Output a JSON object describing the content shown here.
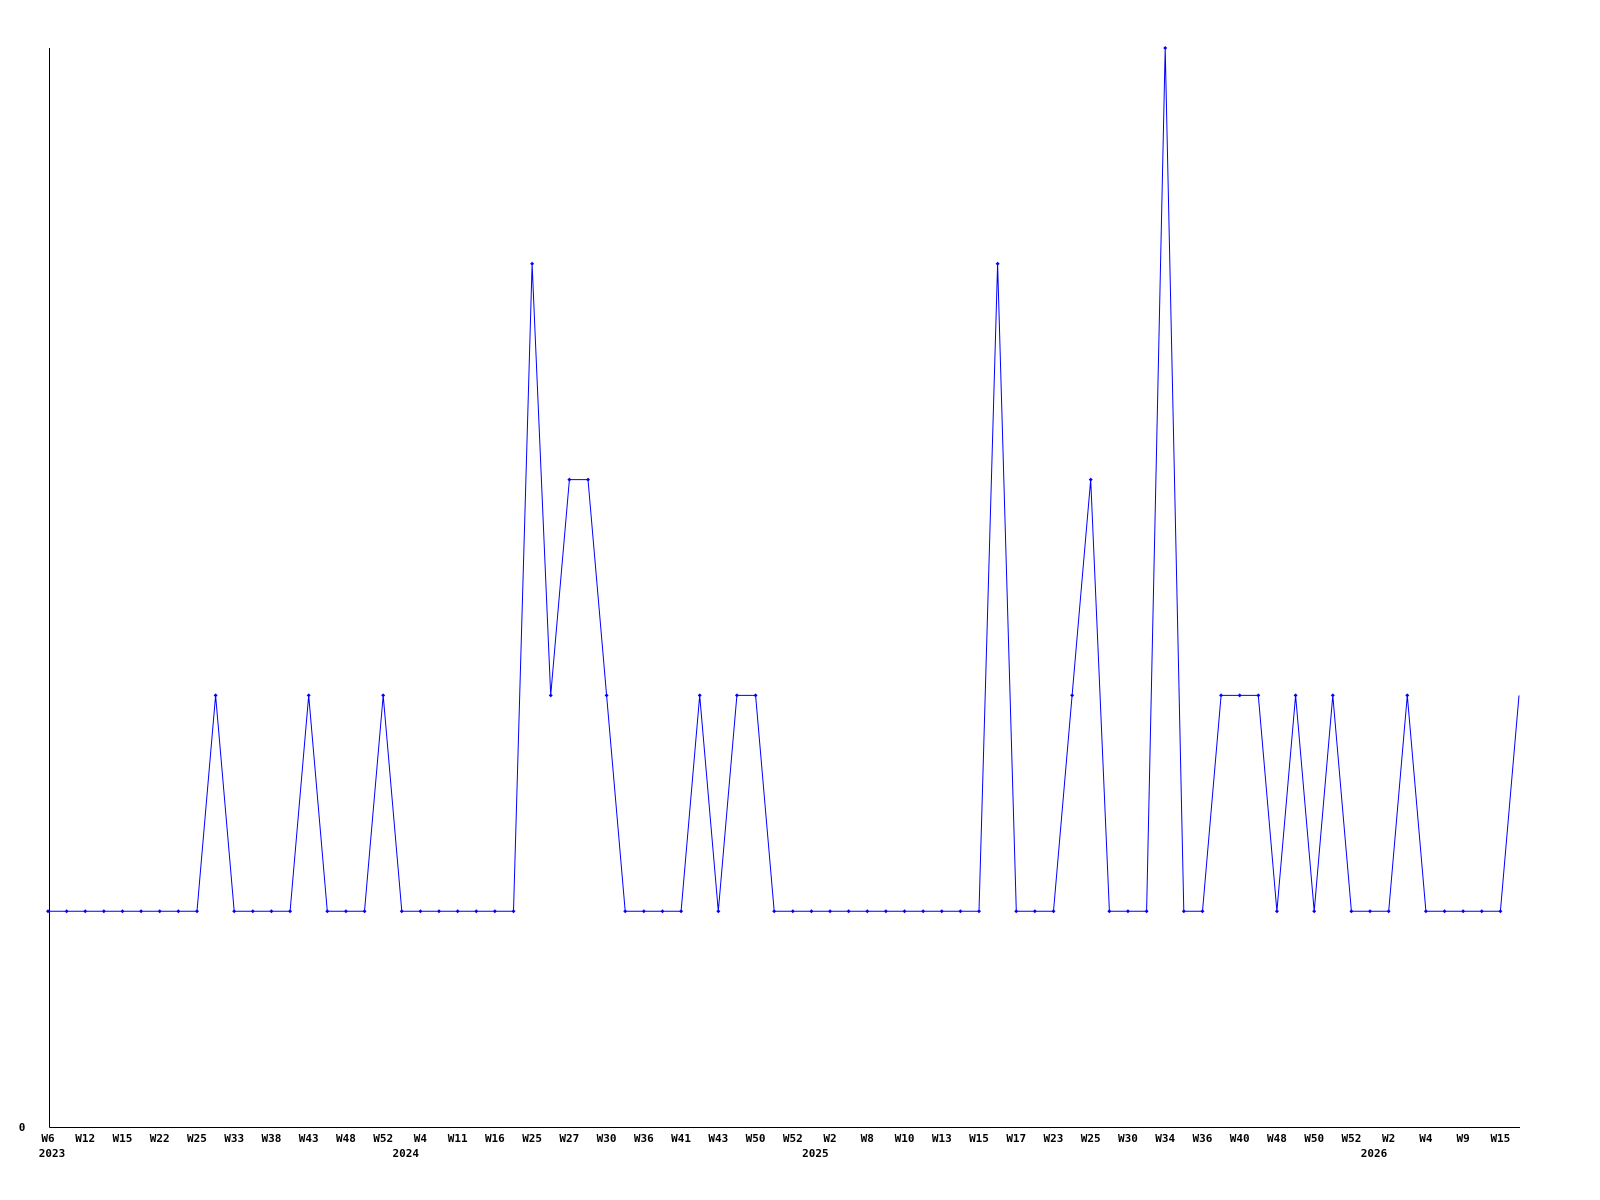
{
  "chart_data": {
    "type": "line",
    "title": "",
    "xlabel": "",
    "ylabel": "",
    "ylim": [
      0,
      5
    ],
    "y_tick_labels": [
      "0"
    ],
    "grid": false,
    "line_color": "#0000ff",
    "x_tick_labels": [
      "W6",
      "W12",
      "W15",
      "W22",
      "W25",
      "W33",
      "W38",
      "W43",
      "W48",
      "W52",
      "W4",
      "W11",
      "W16",
      "W25",
      "W27",
      "W30",
      "W36",
      "W41",
      "W43",
      "W50",
      "W52",
      "W2",
      "W8",
      "W10",
      "W13",
      "W15",
      "W17",
      "W23",
      "W25",
      "W30",
      "W34",
      "W36",
      "W40",
      "W48",
      "W50",
      "W52",
      "W2",
      "W4",
      "W9",
      "W15"
    ],
    "year_labels": [
      {
        "label": "2023",
        "point_index": 0
      },
      {
        "label": "2024",
        "point_index": 19
      },
      {
        "label": "2025",
        "point_index": 41
      },
      {
        "label": "2026",
        "point_index": 71
      }
    ],
    "values": [
      1,
      1,
      1,
      1,
      1,
      1,
      1,
      1,
      1,
      2,
      1,
      1,
      1,
      1,
      2,
      1,
      1,
      1,
      2,
      1,
      1,
      1,
      1,
      1,
      1,
      1,
      4,
      2,
      3,
      3,
      2,
      1,
      1,
      1,
      1,
      2,
      1,
      2,
      2,
      1,
      1,
      1,
      1,
      1,
      1,
      1,
      1,
      1,
      1,
      1,
      1,
      4,
      1,
      1,
      1,
      2,
      3,
      1,
      1,
      1,
      5,
      1,
      1,
      2,
      2,
      2,
      1,
      2,
      1,
      2,
      1,
      1,
      1,
      2,
      1,
      1,
      1,
      1,
      1,
      2
    ]
  }
}
